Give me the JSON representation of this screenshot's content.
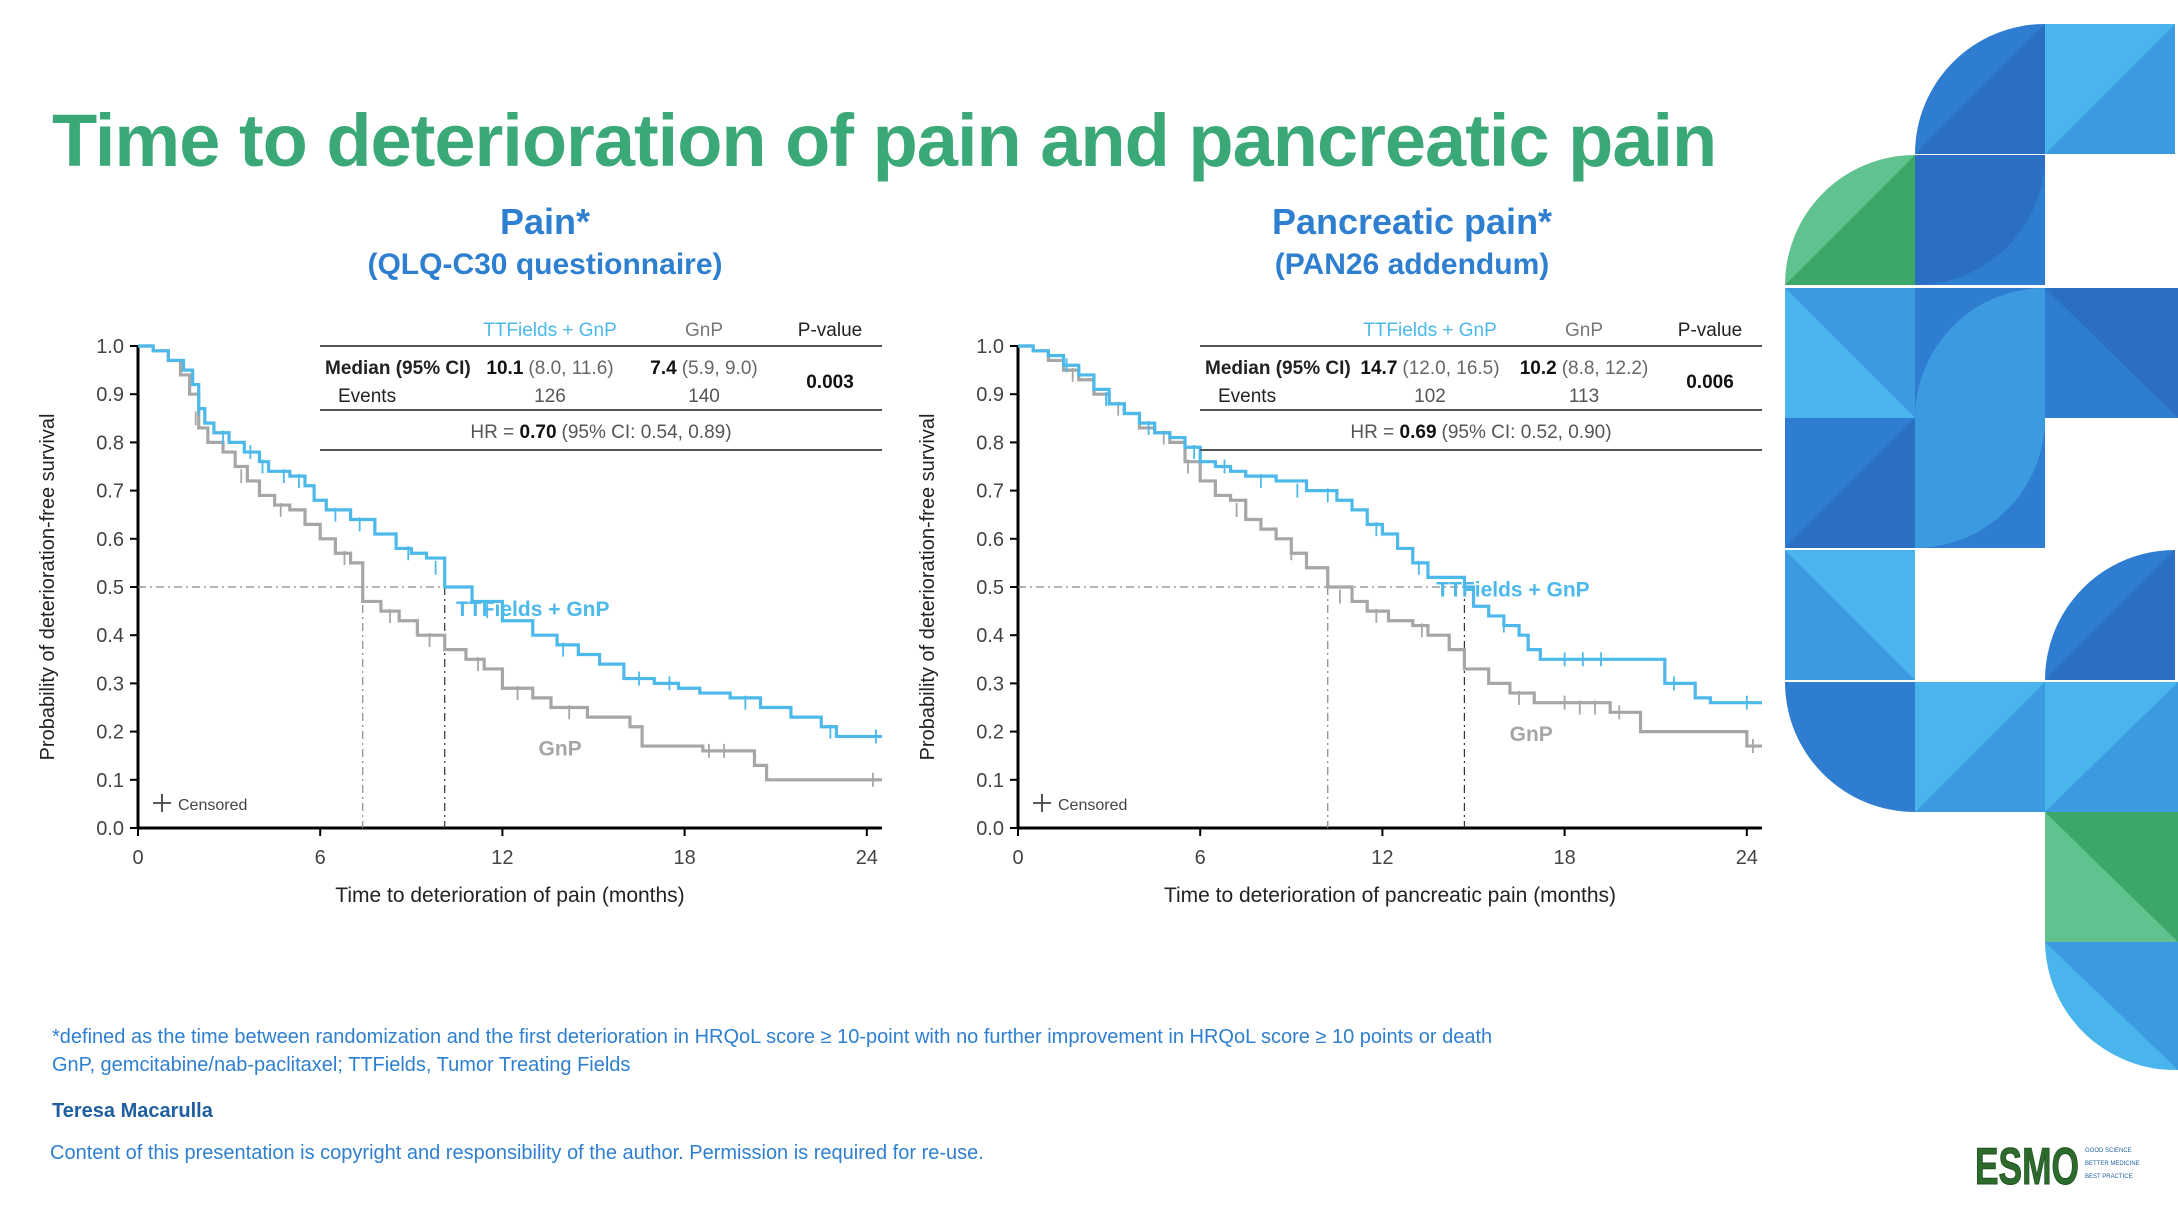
{
  "title": "Time to deterioration of pain and pancreatic pain",
  "footnotes": {
    "line1": "*defined as the time between randomization and the first deterioration in HRQoL score ≥ 10-point with no further improvement in HRQoL score ≥ 10 points or death",
    "line2": "GnP, gemcitabine/nab-paclitaxel; TTFields, Tumor Treating Fields"
  },
  "author": "Teresa Macarulla",
  "copyright": "Content of this presentation is copyright and responsibility of the author. Permission is required for re-use.",
  "logo": {
    "text": "ESMO",
    "tagline": [
      "GOOD SCIENCE",
      "BETTER MEDICINE",
      "BEST PRACTICE"
    ]
  },
  "colors": {
    "title": "#3aa877",
    "accent": "#2e7fcf",
    "ttfields": "#4cb9ea",
    "gnp": "#a6a6a6"
  },
  "chart_data": [
    {
      "type": "line",
      "title": "Pain*",
      "subtitle": "(QLQ-C30 questionnaire)",
      "xlabel": "Time to deterioration of pain (months)",
      "ylabel": "Probability of deterioration-free survival",
      "xlim": [
        0,
        24.5
      ],
      "ylim": [
        0,
        1.0
      ],
      "xticks": [
        0,
        6,
        12,
        18,
        24
      ],
      "yticks": [
        "0.0",
        "0.1",
        "0.2",
        "0.3",
        "0.4",
        "0.5",
        "0.6",
        "0.7",
        "0.8",
        "0.9",
        "1.0"
      ],
      "censored_legend": "Censored",
      "table": {
        "headers": [
          "TTFields + GnP",
          "GnP",
          "P-value"
        ],
        "row1_label": "Median (95% CI)",
        "row2_label": "Events",
        "ttf_median": "10.1",
        "ttf_ci": "(8.0, 11.6)",
        "ttf_events": "126",
        "gnp_median": "7.4",
        "gnp_ci": "(5.9, 9.0)",
        "gnp_events": "140",
        "pvalue": "0.003",
        "hr_pre": "HR = ",
        "hr_val": "0.70",
        "hr_ci": "(95% CI: 0.54, 0.89)"
      },
      "medians": {
        "ttfields": 10.1,
        "gnp": 7.4
      },
      "series": [
        {
          "name": "TTFields + GnP",
          "label_pos": [
            13.0,
            0.44
          ],
          "points": [
            [
              0,
              1.0
            ],
            [
              0.5,
              0.99
            ],
            [
              1.0,
              0.97
            ],
            [
              1.5,
              0.95
            ],
            [
              1.8,
              0.92
            ],
            [
              2.0,
              0.87
            ],
            [
              2.2,
              0.84
            ],
            [
              2.5,
              0.82
            ],
            [
              3.0,
              0.8
            ],
            [
              3.5,
              0.78
            ],
            [
              4.0,
              0.76
            ],
            [
              4.3,
              0.74
            ],
            [
              5.0,
              0.73
            ],
            [
              5.5,
              0.71
            ],
            [
              5.8,
              0.68
            ],
            [
              6.2,
              0.66
            ],
            [
              7.0,
              0.64
            ],
            [
              7.8,
              0.61
            ],
            [
              8.5,
              0.58
            ],
            [
              9.0,
              0.57
            ],
            [
              9.5,
              0.56
            ],
            [
              10.1,
              0.5
            ],
            [
              11.0,
              0.47
            ],
            [
              12.0,
              0.43
            ],
            [
              13.0,
              0.4
            ],
            [
              13.8,
              0.38
            ],
            [
              14.5,
              0.36
            ],
            [
              15.2,
              0.34
            ],
            [
              16.0,
              0.31
            ],
            [
              17.0,
              0.3
            ],
            [
              17.8,
              0.29
            ],
            [
              18.5,
              0.28
            ],
            [
              19.5,
              0.27
            ],
            [
              20.5,
              0.25
            ],
            [
              21.5,
              0.23
            ],
            [
              22.5,
              0.21
            ],
            [
              23.0,
              0.19
            ],
            [
              24.5,
              0.19
            ]
          ],
          "censored": [
            [
              2.0,
              0.87
            ],
            [
              2.8,
              0.81
            ],
            [
              3.7,
              0.78
            ],
            [
              4.1,
              0.75
            ],
            [
              4.8,
              0.73
            ],
            [
              5.3,
              0.72
            ],
            [
              6.5,
              0.65
            ],
            [
              7.3,
              0.63
            ],
            [
              8.9,
              0.57
            ],
            [
              9.8,
              0.54
            ],
            [
              11.5,
              0.45
            ],
            [
              14.0,
              0.37
            ],
            [
              16.5,
              0.31
            ],
            [
              17.5,
              0.3
            ],
            [
              20.0,
              0.26
            ],
            [
              22.8,
              0.2
            ],
            [
              24.3,
              0.19
            ]
          ]
        },
        {
          "name": "GnP",
          "label_pos": [
            13.9,
            0.15
          ],
          "points": [
            [
              0,
              1.0
            ],
            [
              0.5,
              0.99
            ],
            [
              1.0,
              0.97
            ],
            [
              1.4,
              0.94
            ],
            [
              1.7,
              0.9
            ],
            [
              2.0,
              0.83
            ],
            [
              2.3,
              0.8
            ],
            [
              2.8,
              0.78
            ],
            [
              3.2,
              0.75
            ],
            [
              3.6,
              0.72
            ],
            [
              4.0,
              0.69
            ],
            [
              4.5,
              0.67
            ],
            [
              5.0,
              0.66
            ],
            [
              5.5,
              0.63
            ],
            [
              6.0,
              0.6
            ],
            [
              6.5,
              0.57
            ],
            [
              7.0,
              0.55
            ],
            [
              7.4,
              0.47
            ],
            [
              8.0,
              0.45
            ],
            [
              8.6,
              0.43
            ],
            [
              9.2,
              0.4
            ],
            [
              10.1,
              0.37
            ],
            [
              10.8,
              0.35
            ],
            [
              11.4,
              0.33
            ],
            [
              12.0,
              0.29
            ],
            [
              13.0,
              0.27
            ],
            [
              13.6,
              0.25
            ],
            [
              14.8,
              0.23
            ],
            [
              16.2,
              0.21
            ],
            [
              16.6,
              0.17
            ],
            [
              18.6,
              0.16
            ],
            [
              20.3,
              0.13
            ],
            [
              20.7,
              0.1
            ],
            [
              24.5,
              0.1
            ]
          ],
          "censored": [
            [
              1.9,
              0.85
            ],
            [
              3.4,
              0.73
            ],
            [
              4.7,
              0.66
            ],
            [
              6.8,
              0.56
            ],
            [
              8.3,
              0.44
            ],
            [
              9.6,
              0.39
            ],
            [
              11.2,
              0.34
            ],
            [
              12.5,
              0.28
            ],
            [
              14.2,
              0.24
            ],
            [
              18.8,
              0.16
            ],
            [
              19.3,
              0.16
            ],
            [
              24.2,
              0.1
            ]
          ]
        }
      ]
    },
    {
      "type": "line",
      "title": "Pancreatic pain*",
      "subtitle": "(PAN26 addendum)",
      "xlabel": "Time to deterioration of pancreatic pain (months)",
      "ylabel": "Probability of deterioration-free survival",
      "xlim": [
        0,
        24.5
      ],
      "ylim": [
        0,
        1.0
      ],
      "xticks": [
        0,
        6,
        12,
        18,
        24
      ],
      "yticks": [
        "0.0",
        "0.1",
        "0.2",
        "0.3",
        "0.4",
        "0.5",
        "0.6",
        "0.7",
        "0.8",
        "0.9",
        "1.0"
      ],
      "censored_legend": "Censored",
      "table": {
        "headers": [
          "TTFields + GnP",
          "GnP",
          "P-value"
        ],
        "row1_label": "Median (95% CI)",
        "row2_label": "Events",
        "ttf_median": "14.7",
        "ttf_ci": "(12.0, 16.5)",
        "ttf_events": "102",
        "gnp_median": "10.2",
        "gnp_ci": "(8.8, 12.2)",
        "gnp_events": "113",
        "pvalue": "0.006",
        "hr_pre": "HR = ",
        "hr_val": "0.69",
        "hr_ci": "(95% CI: 0.52, 0.90)"
      },
      "medians": {
        "ttfields": 14.7,
        "gnp": 10.2
      },
      "series": [
        {
          "name": "TTFields + GnP",
          "label_pos": [
            16.3,
            0.48
          ],
          "points": [
            [
              0,
              1.0
            ],
            [
              0.5,
              0.99
            ],
            [
              1.0,
              0.98
            ],
            [
              1.5,
              0.96
            ],
            [
              2.0,
              0.94
            ],
            [
              2.5,
              0.91
            ],
            [
              3.0,
              0.88
            ],
            [
              3.5,
              0.86
            ],
            [
              4.0,
              0.84
            ],
            [
              4.5,
              0.82
            ],
            [
              5.0,
              0.81
            ],
            [
              5.5,
              0.79
            ],
            [
              6.0,
              0.76
            ],
            [
              6.5,
              0.75
            ],
            [
              7.0,
              0.74
            ],
            [
              7.5,
              0.73
            ],
            [
              8.5,
              0.72
            ],
            [
              9.5,
              0.7
            ],
            [
              10.5,
              0.68
            ],
            [
              11.0,
              0.66
            ],
            [
              11.5,
              0.63
            ],
            [
              12.0,
              0.61
            ],
            [
              12.5,
              0.58
            ],
            [
              13.0,
              0.55
            ],
            [
              13.5,
              0.52
            ],
            [
              14.7,
              0.5
            ],
            [
              15.0,
              0.46
            ],
            [
              15.5,
              0.44
            ],
            [
              16.0,
              0.42
            ],
            [
              16.5,
              0.4
            ],
            [
              16.8,
              0.37
            ],
            [
              17.2,
              0.35
            ],
            [
              20.0,
              0.35
            ],
            [
              21.3,
              0.3
            ],
            [
              22.3,
              0.27
            ],
            [
              22.8,
              0.26
            ],
            [
              24.5,
              0.26
            ]
          ],
          "censored": [
            [
              1.6,
              0.96
            ],
            [
              2.9,
              0.89
            ],
            [
              4.3,
              0.83
            ],
            [
              5.8,
              0.78
            ],
            [
              6.8,
              0.75
            ],
            [
              8.0,
              0.72
            ],
            [
              9.2,
              0.7
            ],
            [
              10.2,
              0.69
            ],
            [
              11.8,
              0.62
            ],
            [
              13.2,
              0.54
            ],
            [
              16.0,
              0.42
            ],
            [
              18.0,
              0.35
            ],
            [
              18.6,
              0.35
            ],
            [
              19.2,
              0.35
            ],
            [
              21.6,
              0.3
            ],
            [
              24.0,
              0.26
            ]
          ]
        },
        {
          "name": "GnP",
          "label_pos": [
            16.9,
            0.18
          ],
          "points": [
            [
              0,
              1.0
            ],
            [
              0.5,
              0.99
            ],
            [
              1.0,
              0.97
            ],
            [
              1.5,
              0.95
            ],
            [
              2.0,
              0.93
            ],
            [
              2.5,
              0.9
            ],
            [
              3.0,
              0.88
            ],
            [
              3.5,
              0.86
            ],
            [
              4.0,
              0.83
            ],
            [
              4.5,
              0.82
            ],
            [
              5.0,
              0.8
            ],
            [
              5.5,
              0.76
            ],
            [
              6.0,
              0.72
            ],
            [
              6.5,
              0.69
            ],
            [
              7.0,
              0.68
            ],
            [
              7.5,
              0.64
            ],
            [
              8.0,
              0.62
            ],
            [
              8.5,
              0.6
            ],
            [
              9.0,
              0.57
            ],
            [
              9.5,
              0.54
            ],
            [
              10.2,
              0.5
            ],
            [
              11.0,
              0.47
            ],
            [
              11.5,
              0.45
            ],
            [
              12.2,
              0.43
            ],
            [
              13.0,
              0.42
            ],
            [
              13.5,
              0.4
            ],
            [
              14.2,
              0.37
            ],
            [
              14.7,
              0.33
            ],
            [
              15.5,
              0.3
            ],
            [
              16.2,
              0.28
            ],
            [
              17.0,
              0.26
            ],
            [
              19.5,
              0.24
            ],
            [
              20.5,
              0.2
            ],
            [
              23.5,
              0.2
            ],
            [
              24.0,
              0.17
            ],
            [
              24.5,
              0.17
            ]
          ],
          "censored": [
            [
              1.8,
              0.94
            ],
            [
              3.3,
              0.87
            ],
            [
              4.8,
              0.81
            ],
            [
              5.6,
              0.75
            ],
            [
              7.2,
              0.66
            ],
            [
              9.0,
              0.57
            ],
            [
              10.6,
              0.48
            ],
            [
              11.8,
              0.44
            ],
            [
              13.3,
              0.41
            ],
            [
              16.5,
              0.27
            ],
            [
              18.0,
              0.26
            ],
            [
              18.5,
              0.25
            ],
            [
              19.0,
              0.25
            ],
            [
              19.8,
              0.24
            ],
            [
              24.2,
              0.17
            ]
          ]
        }
      ]
    }
  ]
}
